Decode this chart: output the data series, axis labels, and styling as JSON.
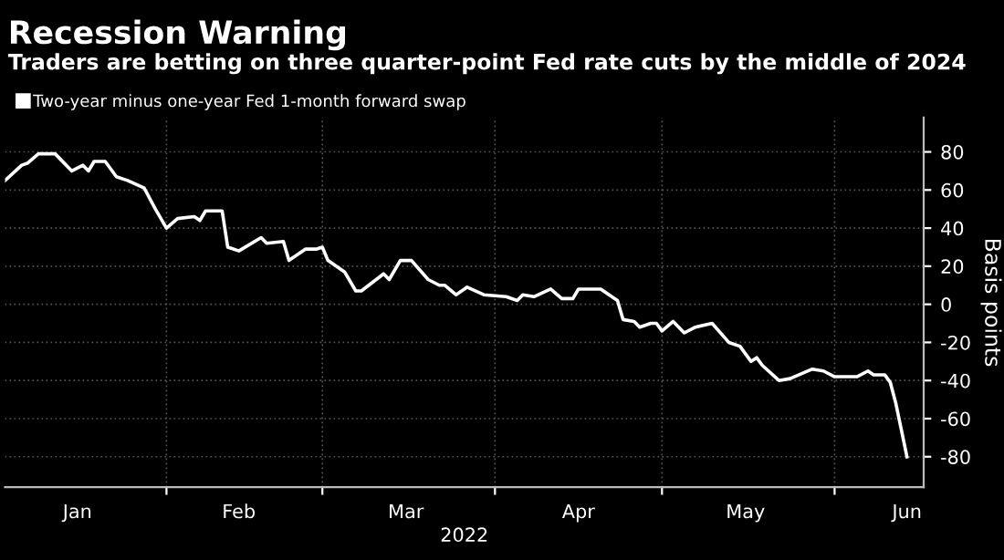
{
  "chart_data": {
    "type": "line",
    "title": "Recession Warning",
    "subtitle": "Traders are betting on three quarter-point Fed rate cuts by the middle of 2024",
    "xlabel": "2022",
    "ylabel": "Basis points",
    "x": [
      "2022-01-03",
      "2022-01-06",
      "2022-01-07",
      "2022-01-09",
      "2022-01-12",
      "2022-01-15",
      "2022-01-17",
      "2022-01-18",
      "2022-01-19",
      "2022-01-21",
      "2022-01-23",
      "2022-01-25",
      "2022-01-28",
      "2022-01-30",
      "2022-02-01",
      "2022-02-03",
      "2022-02-06",
      "2022-02-07",
      "2022-02-08",
      "2022-02-11",
      "2022-02-12",
      "2022-02-14",
      "2022-02-18",
      "2022-02-19",
      "2022-02-22",
      "2022-02-23",
      "2022-02-26",
      "2022-02-28",
      "2022-03-01",
      "2022-03-02",
      "2022-03-05",
      "2022-03-07",
      "2022-03-08",
      "2022-03-12",
      "2022-03-13",
      "2022-03-15",
      "2022-03-17",
      "2022-03-20",
      "2022-03-22",
      "2022-03-23",
      "2022-03-25",
      "2022-03-27",
      "2022-03-30",
      "2022-04-03",
      "2022-04-05",
      "2022-04-06",
      "2022-04-08",
      "2022-04-11",
      "2022-04-13",
      "2022-04-15",
      "2022-04-16",
      "2022-04-20",
      "2022-04-23",
      "2022-04-24",
      "2022-04-26",
      "2022-04-27",
      "2022-04-29",
      "2022-04-30",
      "2022-05-01",
      "2022-05-03",
      "2022-05-05",
      "2022-05-07",
      "2022-05-10",
      "2022-05-13",
      "2022-05-15",
      "2022-05-17",
      "2022-05-18",
      "2022-05-19",
      "2022-05-22",
      "2022-05-24",
      "2022-05-28",
      "2022-05-30",
      "2022-06-01",
      "2022-06-05",
      "2022-06-07",
      "2022-06-08",
      "2022-06-10",
      "2022-06-11",
      "2022-06-12",
      "2022-06-14"
    ],
    "series": [
      {
        "name": "Two-year minus one-year Fed 1-month forward swap",
        "color": "#ffffff",
        "values": [
          65,
          73,
          74,
          79,
          79,
          70,
          73,
          70,
          75,
          75,
          67,
          65,
          61,
          50,
          40,
          45,
          46,
          44,
          49,
          49,
          30,
          28,
          35,
          32,
          33,
          23,
          29,
          29,
          30,
          23,
          17,
          7,
          7,
          16,
          13,
          23,
          23,
          13,
          10,
          10,
          5,
          9,
          5,
          4,
          2,
          5,
          4,
          8,
          3,
          3,
          8,
          8,
          2,
          -8,
          -9,
          -12,
          -10,
          -10,
          -14,
          -9,
          -15,
          -12,
          -10,
          -20,
          -22,
          -30,
          -28,
          -32,
          -40,
          -39,
          -34,
          -35,
          -38,
          -38,
          -35,
          -37,
          -37,
          -41,
          -52,
          -80
        ]
      }
    ],
    "xlim": [
      "2022-01-03",
      "2022-06-17"
    ],
    "xticks": [
      {
        "value": "2022-01-16",
        "label": "Jan"
      },
      {
        "value": "2022-02-01",
        "label": null
      },
      {
        "value": "2022-02-14",
        "label": "Feb"
      },
      {
        "value": "2022-03-01",
        "label": null
      },
      {
        "value": "2022-03-16",
        "label": "Mar"
      },
      {
        "value": "2022-04-01",
        "label": null
      },
      {
        "value": "2022-04-16",
        "label": "Apr"
      },
      {
        "value": "2022-05-01",
        "label": null
      },
      {
        "value": "2022-05-16",
        "label": "May"
      },
      {
        "value": "2022-06-01",
        "label": null
      },
      {
        "value": "2022-06-14",
        "label": "Jun"
      }
    ],
    "ylim": [
      -96,
      98
    ],
    "yticks": [
      -80,
      -60,
      -40,
      -20,
      0,
      20,
      40,
      60,
      80
    ],
    "grid": true,
    "legend": "top left",
    "marker": "none",
    "line_style": "solid"
  }
}
